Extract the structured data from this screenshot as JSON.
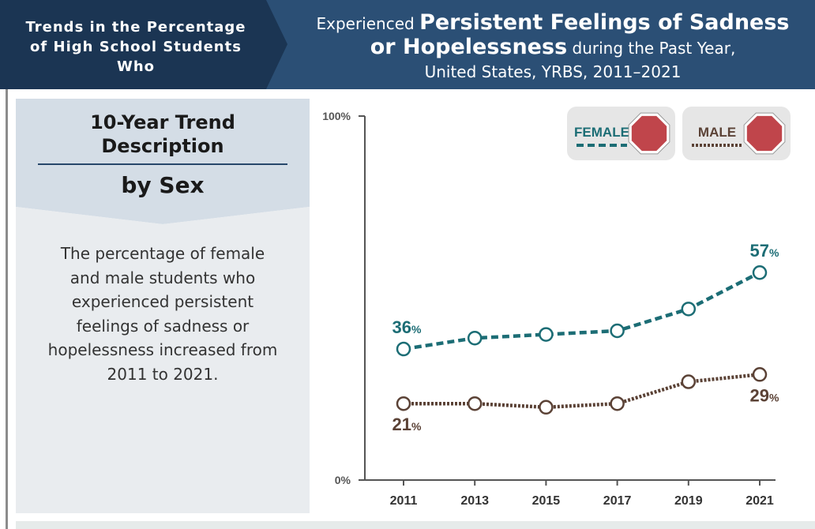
{
  "header": {
    "lead": "Trends in the Percentage of High School Students Who",
    "title_parts": [
      "Experienced",
      "Persistent Feelings of Sadness",
      "or Hopelessness",
      "during the Past Year,",
      "United States, YRBS, 2011–2021"
    ]
  },
  "panel": {
    "heading": "10-Year Trend Description",
    "subheading": "by Sex",
    "description": "The percentage of female and male students who experienced persistent feelings of sadness or hopelessness increased from 2011 to 2021."
  },
  "chart_data": {
    "type": "line",
    "categories": [
      "2011",
      "2013",
      "2015",
      "2017",
      "2019",
      "2021"
    ],
    "series": [
      {
        "name": "FEMALE",
        "color": "#1c6d75",
        "dash": "dashed",
        "values": [
          36,
          39,
          40,
          41,
          47,
          57
        ],
        "value_labels": [
          "36%",
          null,
          null,
          null,
          null,
          "57%"
        ]
      },
      {
        "name": "MALE",
        "color": "#5b4236",
        "dash": "dotted",
        "values": [
          21,
          21,
          20,
          21,
          27,
          29
        ],
        "value_labels": [
          "21%",
          null,
          null,
          null,
          null,
          "29%"
        ]
      }
    ],
    "ylim": [
      0,
      100
    ],
    "yticks": [
      {
        "value": 0,
        "label": "0%"
      },
      {
        "value": 100,
        "label": "100%"
      }
    ]
  }
}
